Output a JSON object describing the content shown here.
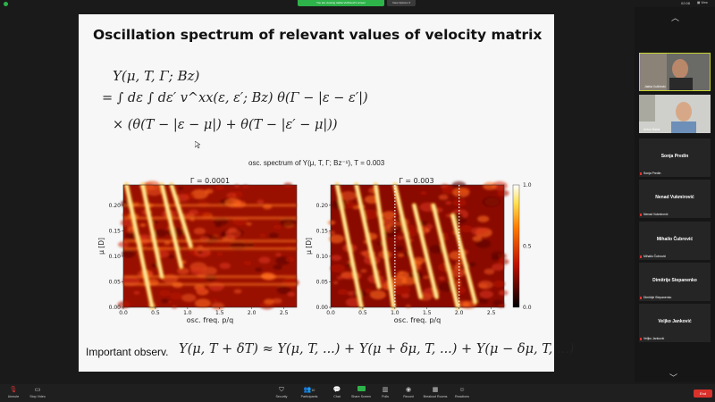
{
  "top_bar": {
    "share_banner": "You are viewing Jakša Vučičević's screen",
    "view_options": "View Options ▾",
    "time": "02:08",
    "view_label": "View"
  },
  "slide": {
    "title": "Oscillation spectrum of relevant values of velocity matrix",
    "equation": {
      "line1": "Y(μ, T, Γ; Bz)",
      "line2": "= ∫ dε ∫ dε′ v^xx(ε, ε′; Bz) θ(Γ − |ε − ε′|)",
      "line3": "× (θ(T − |ε − μ|) + θ(T − |ε′ − μ|))"
    },
    "figure_caption": "osc. spectrum of Y(μ, T, Γ; Bz⁻¹), T = 0.003",
    "left_panel_title": "Γ = 0.0001",
    "right_panel_title": "Γ = 0.003",
    "observation_label": "Important observ.",
    "observation_eq": "Y(μ, T + δT) ≈ Y(μ, T, ...) + Y(μ + δμ, T, ...) + Y(μ − δμ, T, ...)"
  },
  "chart_data": [
    {
      "type": "heatmap",
      "title": "Γ = 0.0001",
      "xlabel": "osc. freq. p/q",
      "ylabel": "μ [D]",
      "xlim": [
        0.0,
        2.7
      ],
      "ylim": [
        0.0,
        0.24
      ],
      "xticks": [
        "0.0",
        "0.5",
        "1.0",
        "1.5",
        "2.0",
        "2.5"
      ],
      "yticks": [
        "0.00",
        "0.05",
        "0.10",
        "0.15",
        "0.20"
      ],
      "colormap": "hot",
      "ridges": [
        {
          "x_top": 0.05,
          "x_bottom": 0.45,
          "y_top": 0.24,
          "y_bottom": 0.0
        },
        {
          "x_top": 0.3,
          "x_bottom": 0.6,
          "y_top": 0.24,
          "y_bottom": 0.06
        },
        {
          "x_top": 0.6,
          "x_bottom": 0.9,
          "y_top": 0.24,
          "y_bottom": 0.08
        },
        {
          "x_top": 0.75,
          "x_bottom": 1.05,
          "y_top": 0.24,
          "y_bottom": 0.12
        }
      ],
      "bands_mu": [
        0.045,
        0.06,
        0.115,
        0.13,
        0.175,
        0.2
      ]
    },
    {
      "type": "heatmap",
      "title": "Γ = 0.003",
      "xlabel": "osc. freq. p/q",
      "ylabel": "μ [D]",
      "xlim": [
        0.0,
        2.7
      ],
      "ylim": [
        0.0,
        0.24
      ],
      "xticks": [
        "0.0",
        "0.5",
        "1.0",
        "1.5",
        "2.0",
        "2.5"
      ],
      "yticks": [
        "0.00",
        "0.05",
        "0.10",
        "0.15",
        "0.20"
      ],
      "colorbar": {
        "min": 0.0,
        "max": 1.0,
        "ticks": [
          "0.0",
          "0.5",
          "1.0"
        ]
      },
      "colormap": "hot",
      "ridges": [
        {
          "x_top": 0.1,
          "x_bottom": 0.48,
          "y_top": 0.24,
          "y_bottom": 0.0
        },
        {
          "x_top": 0.4,
          "x_bottom": 0.75,
          "y_top": 0.24,
          "y_bottom": 0.04
        },
        {
          "x_top": 0.7,
          "x_bottom": 0.98,
          "y_top": 0.24,
          "y_bottom": 0.0
        },
        {
          "x_top": 1.0,
          "x_bottom": 1.4,
          "y_top": 0.24,
          "y_bottom": 0.02
        },
        {
          "x_top": 1.3,
          "x_bottom": 1.65,
          "y_top": 0.2,
          "y_bottom": 0.02
        },
        {
          "x_top": 1.6,
          "x_bottom": 1.98,
          "y_top": 0.2,
          "y_bottom": 0.0
        },
        {
          "x_top": 1.9,
          "x_bottom": 2.25,
          "y_top": 0.18,
          "y_bottom": 0.01
        }
      ],
      "dotted_lines_x": [
        1.0,
        2.0
      ]
    }
  ],
  "participants": [
    {
      "name": "Jakša Vučičević",
      "video": true
    },
    {
      "name": "Antun Balaž",
      "video": true
    },
    {
      "name": "Sonja Predin",
      "video": false
    },
    {
      "name": "Nenad Vukmirović",
      "video": false
    },
    {
      "name": "Mihailo Čubrović",
      "video": false
    },
    {
      "name": "Dimitrije Stepanenko",
      "video": false
    },
    {
      "name": "Veljko Janković",
      "video": false
    }
  ],
  "toolbar": {
    "unmute": "Unmute",
    "stop_video": "Stop Video",
    "security": "Security",
    "participants": "Participants",
    "participants_count": "10",
    "chat": "Chat",
    "share_screen": "Share Screen",
    "polls": "Polls",
    "record": "Record",
    "breakout": "Breakout Rooms",
    "reactions": "Reactions",
    "end": "End"
  },
  "colors": {
    "accent_green": "#2eb34a",
    "end_red": "#d9312b",
    "active_border": "#c8d330"
  }
}
